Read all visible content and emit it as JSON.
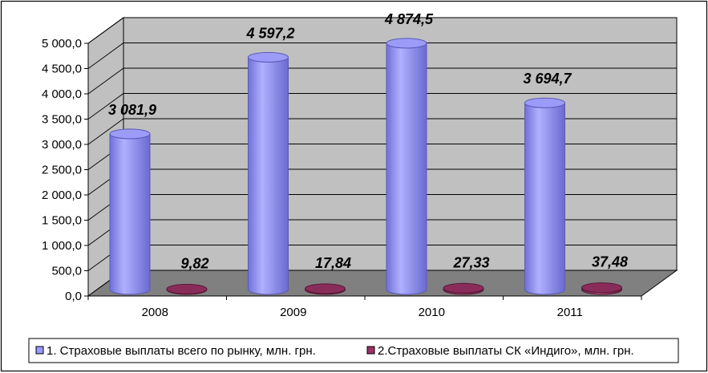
{
  "chart_data": {
    "type": "bar",
    "title": "",
    "xlabel": "",
    "ylabel": "",
    "categories": [
      "2008",
      "2009",
      "2010",
      "2011"
    ],
    "series": [
      {
        "name": "1. Страховые выплаты всего по рынку, млн. грн.",
        "values": [
          3081.9,
          4597.2,
          4874.5,
          3694.7
        ],
        "labels": [
          "3 081,9",
          "4 597,2",
          "4 874,5",
          "3 694,7"
        ],
        "color": "#9999ff"
      },
      {
        "name": "2.Страховые выплаты СК «Индиго», млн. грн.",
        "values": [
          9.82,
          17.84,
          27.33,
          37.48
        ],
        "labels": [
          "9,82",
          "17,84",
          "27,33",
          "37,48"
        ],
        "color": "#993366"
      }
    ],
    "ylim": [
      0,
      5000
    ],
    "yticks": [
      "0,0",
      "500,0",
      "1 000,0",
      "1 500,0",
      "2 000,0",
      "2 500,0",
      "3 000,0",
      "3 500,0",
      "4 000,0",
      "4 500,0",
      "5 000,0"
    ],
    "grid": true,
    "legend": "bottom",
    "style": "3d-cylinder",
    "colors": {
      "wall": "#c0c0c0",
      "floor": "#808080",
      "gridline": "#000000"
    }
  }
}
